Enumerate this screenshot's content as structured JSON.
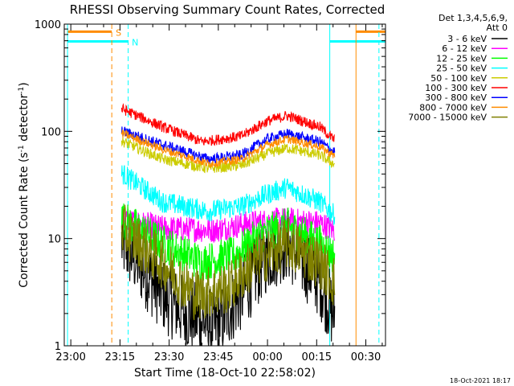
{
  "chart_data": {
    "type": "line",
    "title": "RHESSI Observing Summary Count Rates, Corrected",
    "xlabel": "Start Time (18-Oct-10 22:58:02)",
    "ylabel": "Corrected Count Rate (s",
    "ylabel_sup1": "-1",
    "ylabel_mid": " detector",
    "ylabel_sup2": "-1",
    "ylabel_end": ")",
    "x_ticks": [
      "23:00",
      "23:15",
      "23:30",
      "23:45",
      "00:00",
      "00:15",
      "00:30"
    ],
    "x_tick_minutes": [
      0,
      15,
      30,
      45,
      60,
      75,
      90
    ],
    "x_range_minutes": [
      -2,
      96
    ],
    "y_ticks": [
      "1",
      "10",
      "100",
      "1000"
    ],
    "y_tick_values": [
      1,
      10,
      100,
      1000
    ],
    "ylim": [
      1,
      1000
    ],
    "y_scale": "log",
    "grid": false,
    "legend_header": [
      "Det 1,3,4,5,6,9,",
      "Att 0"
    ],
    "legend_placement": "right",
    "footer_date": "18-Oct-2021 18:17",
    "markers": {
      "saa_label": "S",
      "night_label": "N",
      "saa_color": "#ff8c00",
      "night_color": "#00ffff",
      "lines": [
        {
          "x": 12.5,
          "color": "#ff8c00",
          "style": "dashed"
        },
        {
          "x": 17.5,
          "color": "#00ffff",
          "style": "dashed"
        },
        {
          "x": 79,
          "color": "#00ffff",
          "style": "solid"
        },
        {
          "x": 87,
          "color": "#ff8c00",
          "style": "solid"
        },
        {
          "x": 94,
          "color": "#00ffff",
          "style": "dashed"
        },
        {
          "x": -1,
          "color": "#00ffff",
          "style": "solid"
        }
      ],
      "bars": [
        {
          "x0": -1,
          "x1": 12.5,
          "color": "#ff8c00",
          "level": 850
        },
        {
          "x0": -1,
          "x1": 17.5,
          "color": "#00ffff",
          "level": 690
        },
        {
          "x0": 87,
          "x1": 96,
          "color": "#ff8c00",
          "level": 850
        },
        {
          "x0": 79,
          "x1": 96,
          "color": "#00ffff",
          "level": 690
        }
      ]
    },
    "data_x_range_minutes": [
      15.5,
      80.5
    ],
    "series": [
      {
        "name": "3 - 6 keV",
        "color": "#000000",
        "min_pts": [
          [
            16,
            9
          ],
          [
            28,
            3
          ],
          [
            35,
            2
          ],
          [
            44,
            1.5
          ],
          [
            52,
            3
          ],
          [
            60,
            7
          ],
          [
            66,
            9
          ],
          [
            76,
            4
          ],
          [
            80,
            2
          ]
        ],
        "noise": 0.35
      },
      {
        "name": "6 - 12 keV",
        "color": "#ff00ff",
        "min_pts": [
          [
            16,
            15
          ],
          [
            28,
            12.5
          ],
          [
            44,
            12
          ],
          [
            55,
            14
          ],
          [
            65,
            15
          ],
          [
            76,
            14
          ],
          [
            80,
            12
          ]
        ],
        "noise": 0.12
      },
      {
        "name": "12 - 25 keV",
        "color": "#00ff00",
        "min_pts": [
          [
            16,
            15
          ],
          [
            28,
            9
          ],
          [
            40,
            6
          ],
          [
            50,
            7
          ],
          [
            58,
            11
          ],
          [
            66,
            13
          ],
          [
            76,
            9
          ],
          [
            80,
            7
          ]
        ],
        "noise": 0.18
      },
      {
        "name": "25 - 50 keV",
        "color": "#00ffff",
        "min_pts": [
          [
            16,
            40
          ],
          [
            28,
            22
          ],
          [
            42,
            18
          ],
          [
            52,
            20
          ],
          [
            60,
            26
          ],
          [
            66,
            30
          ],
          [
            76,
            22
          ],
          [
            80,
            17
          ]
        ],
        "noise": 0.1
      },
      {
        "name": "50 - 100 keV",
        "color": "#cccc00",
        "min_pts": [
          [
            16,
            80
          ],
          [
            28,
            55
          ],
          [
            42,
            45
          ],
          [
            52,
            48
          ],
          [
            60,
            62
          ],
          [
            66,
            70
          ],
          [
            76,
            60
          ],
          [
            80,
            50
          ]
        ],
        "noise": 0.05
      },
      {
        "name": "100 - 300 keV",
        "color": "#ff0000",
        "min_pts": [
          [
            16,
            160
          ],
          [
            28,
            110
          ],
          [
            40,
            80
          ],
          [
            52,
            90
          ],
          [
            60,
            125
          ],
          [
            66,
            140
          ],
          [
            76,
            110
          ],
          [
            80,
            85
          ]
        ],
        "noise": 0.05
      },
      {
        "name": "300 - 800 keV",
        "color": "#0000ff",
        "min_pts": [
          [
            16,
            100
          ],
          [
            28,
            75
          ],
          [
            42,
            55
          ],
          [
            52,
            60
          ],
          [
            60,
            85
          ],
          [
            66,
            95
          ],
          [
            76,
            80
          ],
          [
            80,
            65
          ]
        ],
        "noise": 0.05
      },
      {
        "name": "800 - 7000 keV",
        "color": "#ff8c00",
        "min_pts": [
          [
            16,
            95
          ],
          [
            28,
            68
          ],
          [
            42,
            50
          ],
          [
            52,
            55
          ],
          [
            60,
            75
          ],
          [
            66,
            85
          ],
          [
            76,
            72
          ],
          [
            80,
            60
          ]
        ],
        "noise": 0.04
      },
      {
        "name": "7000 - 15000 keV",
        "color": "#808000",
        "min_pts": [
          [
            16,
            12
          ],
          [
            28,
            6
          ],
          [
            38,
            3
          ],
          [
            48,
            3.5
          ],
          [
            56,
            6
          ],
          [
            66,
            9
          ],
          [
            76,
            6
          ],
          [
            80,
            4
          ]
        ],
        "noise": 0.25
      }
    ]
  }
}
